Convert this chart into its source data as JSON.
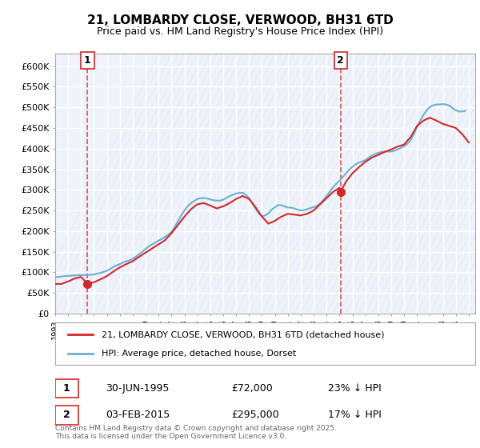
{
  "title": "21, LOMBARDY CLOSE, VERWOOD, BH31 6TD",
  "subtitle": "Price paid vs. HM Land Registry's House Price Index (HPI)",
  "ylabel_prefix": "£",
  "yticks": [
    0,
    50000,
    100000,
    150000,
    200000,
    250000,
    300000,
    350000,
    400000,
    450000,
    500000,
    550000,
    600000
  ],
  "ytick_labels": [
    "£0",
    "£50K",
    "£100K",
    "£150K",
    "£200K",
    "£250K",
    "£300K",
    "£350K",
    "£400K",
    "£450K",
    "£500K",
    "£550K",
    "£600K"
  ],
  "xmin": 1993.0,
  "xmax": 2025.5,
  "ymin": 0,
  "ymax": 630000,
  "hpi_color": "#6baed6",
  "price_color": "#d62728",
  "marker1_x": 1995.5,
  "marker1_y": 72000,
  "marker2_x": 2015.08,
  "marker2_y": 295000,
  "vline1_x": 1995.5,
  "vline2_x": 2015.08,
  "annotation1_label": "1",
  "annotation2_label": "2",
  "legend_price": "21, LOMBARDY CLOSE, VERWOOD, BH31 6TD (detached house)",
  "legend_hpi": "HPI: Average price, detached house, Dorset",
  "note1_label": "1",
  "note1_date": "30-JUN-1995",
  "note1_price": "£72,000",
  "note1_hpi": "23% ↓ HPI",
  "note2_label": "2",
  "note2_date": "03-FEB-2015",
  "note2_price": "£295,000",
  "note2_hpi": "17% ↓ HPI",
  "copyright": "Contains HM Land Registry data © Crown copyright and database right 2025.\nThis data is licensed under the Open Government Licence v3.0.",
  "background_chart": "#eef3fb",
  "background_fig": "#ffffff",
  "grid_color": "#ffffff",
  "hpi_data_x": [
    1993.0,
    1993.25,
    1993.5,
    1993.75,
    1994.0,
    1994.25,
    1994.5,
    1994.75,
    1995.0,
    1995.25,
    1995.5,
    1995.75,
    1996.0,
    1996.25,
    1996.5,
    1996.75,
    1997.0,
    1997.25,
    1997.5,
    1997.75,
    1998.0,
    1998.25,
    1998.5,
    1998.75,
    1999.0,
    1999.25,
    1999.5,
    1999.75,
    2000.0,
    2000.25,
    2000.5,
    2000.75,
    2001.0,
    2001.25,
    2001.5,
    2001.75,
    2002.0,
    2002.25,
    2002.5,
    2002.75,
    2003.0,
    2003.25,
    2003.5,
    2003.75,
    2004.0,
    2004.25,
    2004.5,
    2004.75,
    2005.0,
    2005.25,
    2005.5,
    2005.75,
    2006.0,
    2006.25,
    2006.5,
    2006.75,
    2007.0,
    2007.25,
    2007.5,
    2007.75,
    2008.0,
    2008.25,
    2008.5,
    2008.75,
    2009.0,
    2009.25,
    2009.5,
    2009.75,
    2010.0,
    2010.25,
    2010.5,
    2010.75,
    2011.0,
    2011.25,
    2011.5,
    2011.75,
    2012.0,
    2012.25,
    2012.5,
    2012.75,
    2013.0,
    2013.25,
    2013.5,
    2013.75,
    2014.0,
    2014.25,
    2014.5,
    2014.75,
    2015.0,
    2015.25,
    2015.5,
    2015.75,
    2016.0,
    2016.25,
    2016.5,
    2016.75,
    2017.0,
    2017.25,
    2017.5,
    2017.75,
    2018.0,
    2018.25,
    2018.5,
    2018.75,
    2019.0,
    2019.25,
    2019.5,
    2019.75,
    2020.0,
    2020.25,
    2020.5,
    2020.75,
    2021.0,
    2021.25,
    2021.5,
    2021.75,
    2022.0,
    2022.25,
    2022.5,
    2022.75,
    2023.0,
    2023.25,
    2023.5,
    2023.75,
    2024.0,
    2024.25,
    2024.5,
    2024.75
  ],
  "hpi_data_y": [
    88000,
    89000,
    90000,
    91000,
    91500,
    92000,
    92500,
    93000,
    93000,
    93500,
    93500,
    94000,
    95000,
    97000,
    99000,
    101000,
    104000,
    108000,
    113000,
    117000,
    120000,
    124000,
    127000,
    129000,
    133000,
    138000,
    144000,
    150000,
    157000,
    163000,
    168000,
    172000,
    177000,
    181000,
    186000,
    191000,
    198000,
    210000,
    224000,
    238000,
    250000,
    260000,
    268000,
    273000,
    278000,
    280000,
    280000,
    279000,
    277000,
    275000,
    274000,
    274000,
    276000,
    281000,
    285000,
    288000,
    291000,
    293000,
    293000,
    288000,
    280000,
    268000,
    254000,
    243000,
    236000,
    238000,
    243000,
    252000,
    258000,
    263000,
    263000,
    260000,
    257000,
    257000,
    255000,
    252000,
    250000,
    251000,
    253000,
    256000,
    258000,
    261000,
    267000,
    276000,
    285000,
    296000,
    306000,
    315000,
    322000,
    331000,
    340000,
    349000,
    356000,
    362000,
    366000,
    369000,
    372000,
    378000,
    383000,
    387000,
    390000,
    392000,
    393000,
    393000,
    393000,
    395000,
    398000,
    402000,
    406000,
    412000,
    420000,
    435000,
    453000,
    468000,
    482000,
    493000,
    501000,
    505000,
    507000,
    507000,
    508000,
    507000,
    504000,
    498000,
    493000,
    490000,
    490000,
    492000
  ],
  "price_data_x": [
    1993.0,
    1993.5,
    1994.0,
    1994.5,
    1995.0,
    1995.5,
    1996.0,
    1996.5,
    1997.0,
    1997.5,
    1998.0,
    1998.5,
    1999.0,
    1999.5,
    2000.0,
    2000.5,
    2001.0,
    2001.5,
    2002.0,
    2002.5,
    2003.0,
    2003.5,
    2004.0,
    2004.5,
    2005.0,
    2005.5,
    2006.0,
    2006.5,
    2007.0,
    2007.5,
    2008.0,
    2008.5,
    2009.0,
    2009.5,
    2010.0,
    2010.5,
    2011.0,
    2011.5,
    2012.0,
    2012.5,
    2013.0,
    2013.5,
    2014.0,
    2014.5,
    2015.0,
    2015.08,
    2015.5,
    2016.0,
    2016.5,
    2017.0,
    2017.5,
    2018.0,
    2018.5,
    2019.0,
    2019.5,
    2020.0,
    2020.5,
    2021.0,
    2021.5,
    2022.0,
    2022.5,
    2023.0,
    2023.5,
    2024.0,
    2024.5,
    2025.0
  ],
  "price_data_y": [
    72000,
    72000,
    78000,
    85000,
    89000,
    72000,
    76000,
    83000,
    91000,
    102000,
    112000,
    120000,
    127000,
    138000,
    148000,
    158000,
    168000,
    178000,
    195000,
    215000,
    235000,
    253000,
    265000,
    268000,
    262000,
    255000,
    260000,
    268000,
    278000,
    285000,
    278000,
    258000,
    235000,
    218000,
    225000,
    235000,
    242000,
    240000,
    238000,
    242000,
    250000,
    265000,
    280000,
    295000,
    305000,
    295000,
    320000,
    340000,
    355000,
    368000,
    378000,
    385000,
    392000,
    398000,
    405000,
    410000,
    428000,
    455000,
    468000,
    475000,
    468000,
    460000,
    455000,
    450000,
    435000,
    415000
  ]
}
